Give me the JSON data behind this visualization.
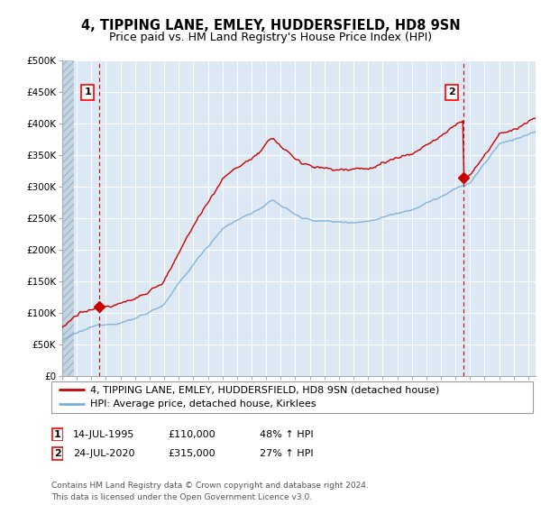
{
  "title": "4, TIPPING LANE, EMLEY, HUDDERSFIELD, HD8 9SN",
  "subtitle": "Price paid vs. HM Land Registry's House Price Index (HPI)",
  "ylim": [
    0,
    500000
  ],
  "yticks": [
    0,
    50000,
    100000,
    150000,
    200000,
    250000,
    300000,
    350000,
    400000,
    450000,
    500000
  ],
  "ytick_labels": [
    "£0",
    "£50K",
    "£100K",
    "£150K",
    "£200K",
    "£250K",
    "£300K",
    "£350K",
    "£400K",
    "£450K",
    "£500K"
  ],
  "xlim_start": 1993,
  "xlim_end": 2025.5,
  "hpi_color": "#7aadd4",
  "price_color": "#CC0000",
  "grid_color": "#C8D8E8",
  "bg_color": "#dce9f5",
  "hatch_color": "#b8c8d8",
  "sale1_date": 1995.54,
  "sale1_price": 110000,
  "sale1_label": "1",
  "sale2_date": 2020.56,
  "sale2_price": 315000,
  "sale2_label": "2",
  "legend_line1": "4, TIPPING LANE, EMLEY, HUDDERSFIELD, HD8 9SN (detached house)",
  "legend_line2": "HPI: Average price, detached house, Kirklees",
  "table_row1": [
    "1",
    "14-JUL-1995",
    "£110,000",
    "48% ↑ HPI"
  ],
  "table_row2": [
    "2",
    "24-JUL-2020",
    "£315,000",
    "27% ↑ HPI"
  ],
  "footnote": "Contains HM Land Registry data © Crown copyright and database right 2024.\nThis data is licensed under the Open Government Licence v3.0.",
  "title_fontsize": 10.5,
  "subtitle_fontsize": 9,
  "tick_fontsize": 7.5,
  "legend_fontsize": 8,
  "table_fontsize": 8,
  "footnote_fontsize": 6.5
}
